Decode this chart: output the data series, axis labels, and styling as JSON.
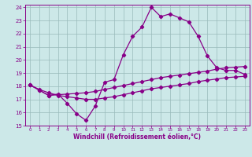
{
  "xlabel": "Windchill (Refroidissement éolien,°C)",
  "bg_color": "#cce8e8",
  "line_color": "#880088",
  "grid_color": "#99bbbb",
  "xlim": [
    -0.5,
    23.5
  ],
  "ylim": [
    15,
    24.2
  ],
  "yticks": [
    15,
    16,
    17,
    18,
    19,
    20,
    21,
    22,
    23,
    24
  ],
  "xticks": [
    0,
    1,
    2,
    3,
    4,
    5,
    6,
    7,
    8,
    9,
    10,
    11,
    12,
    13,
    14,
    15,
    16,
    17,
    18,
    19,
    20,
    21,
    22,
    23
  ],
  "line1_x": [
    0,
    1,
    2,
    3,
    4,
    5,
    6,
    7,
    8,
    9,
    10,
    11,
    12,
    13,
    14,
    15,
    16,
    17,
    18,
    19,
    20,
    21,
    22,
    23
  ],
  "line1_y": [
    18.1,
    17.7,
    17.3,
    17.4,
    16.7,
    15.9,
    15.4,
    16.5,
    18.3,
    18.5,
    20.4,
    21.8,
    22.5,
    24.0,
    23.3,
    23.5,
    23.2,
    22.9,
    21.8,
    20.3,
    19.4,
    19.2,
    19.2,
    18.9
  ],
  "line2_x": [
    0,
    1,
    2,
    3,
    4,
    5,
    6,
    7,
    8,
    9,
    10,
    11,
    12,
    13,
    14,
    15,
    16,
    17,
    18,
    19,
    20,
    21,
    22,
    23
  ],
  "line2_y": [
    18.1,
    17.7,
    17.3,
    17.35,
    17.4,
    17.45,
    17.5,
    17.6,
    17.75,
    17.9,
    18.05,
    18.2,
    18.35,
    18.5,
    18.65,
    18.75,
    18.85,
    18.95,
    19.05,
    19.15,
    19.3,
    19.4,
    19.45,
    19.5
  ],
  "line3_x": [
    0,
    1,
    2,
    3,
    4,
    5,
    6,
    7,
    8,
    9,
    10,
    11,
    12,
    13,
    14,
    15,
    16,
    17,
    18,
    19,
    20,
    21,
    22,
    23
  ],
  "line3_y": [
    18.1,
    17.75,
    17.5,
    17.3,
    17.2,
    17.1,
    17.0,
    17.0,
    17.1,
    17.2,
    17.35,
    17.5,
    17.65,
    17.8,
    17.9,
    18.0,
    18.1,
    18.2,
    18.35,
    18.45,
    18.55,
    18.65,
    18.7,
    18.75
  ]
}
